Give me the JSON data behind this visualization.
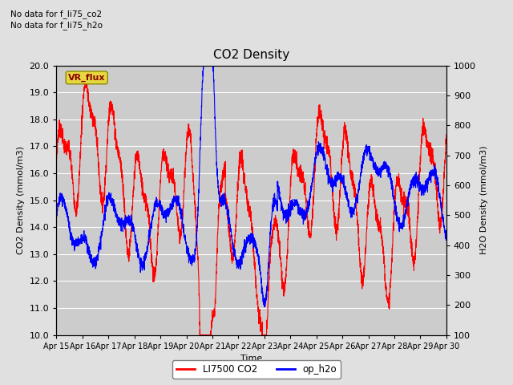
{
  "title": "CO2 Density",
  "xlabel": "Time",
  "ylabel_left": "CO2 Density (mmol/m3)",
  "ylabel_right": "H2O Density (mmol/m3)",
  "ylim_left": [
    10.0,
    20.0
  ],
  "ylim_right": [
    100,
    1000
  ],
  "yticks_left": [
    10.0,
    11.0,
    12.0,
    13.0,
    14.0,
    15.0,
    16.0,
    17.0,
    18.0,
    19.0,
    20.0
  ],
  "yticks_right": [
    100,
    200,
    300,
    400,
    500,
    600,
    700,
    800,
    900,
    1000
  ],
  "xticklabels": [
    "Apr 15",
    "Apr 16",
    "Apr 17",
    "Apr 18",
    "Apr 19",
    "Apr 20",
    "Apr 21",
    "Apr 22",
    "Apr 23",
    "Apr 24",
    "Apr 25",
    "Apr 26",
    "Apr 27",
    "Apr 28",
    "Apr 29",
    "Apr 30"
  ],
  "note1": "No data for f_li75_co2",
  "note2": "No data for f_li75_h2o",
  "legend_label1": "LI7500 CO2",
  "legend_label2": "op_h2o",
  "legend_color1": "red",
  "legend_color2": "blue",
  "vr_flux_label": "VR_flux",
  "background_color": "#e0e0e0",
  "plot_bg_color": "#cccccc",
  "grid_color": "white",
  "line_width": 0.8
}
